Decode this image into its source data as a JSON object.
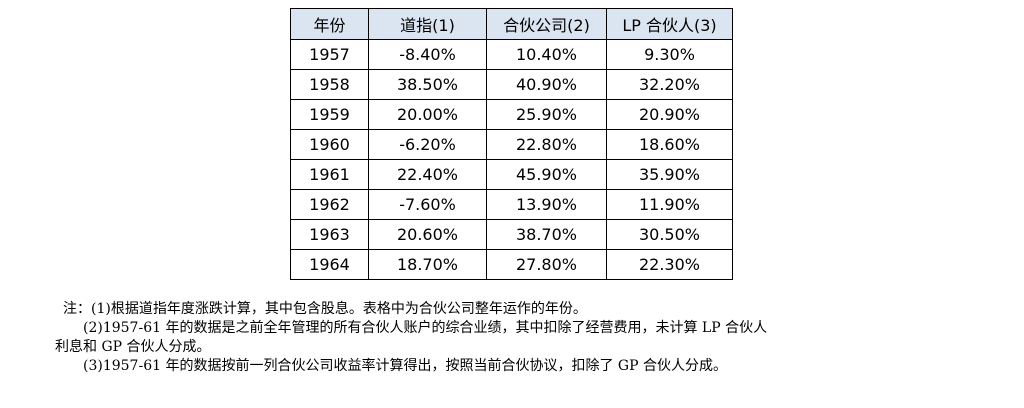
{
  "table": {
    "headers": [
      "年份",
      "道指(1)",
      "合伙公司(2)",
      "LP 合伙人(3)"
    ],
    "rows": [
      [
        "1957",
        "-8.40%",
        "10.40%",
        "9.30%"
      ],
      [
        "1958",
        "38.50%",
        "40.90%",
        "32.20%"
      ],
      [
        "1959",
        "20.00%",
        "25.90%",
        "20.90%"
      ],
      [
        "1960",
        "-6.20%",
        "22.80%",
        "18.60%"
      ],
      [
        "1961",
        "22.40%",
        "45.90%",
        "35.90%"
      ],
      [
        "1962",
        "-7.60%",
        "13.90%",
        "11.90%"
      ],
      [
        "1963",
        "20.60%",
        "38.70%",
        "30.50%"
      ],
      [
        "1964",
        "18.70%",
        "27.80%",
        "22.30%"
      ]
    ]
  },
  "notes": {
    "note1": "注：(1)根据道指年度涨跌计算，其中包含股息。表格中为合伙公司整年运作的年份。",
    "note2_line1": "(2)1957-61 年的数据是之前全年管理的所有合伙人账户的综合业绩，其中扣除了经营费用，未计算 LP 合伙人",
    "note2_line2": "利息和 GP 合伙人分成。",
    "note3": "(3)1957-61 年的数据按前一列合伙公司收益率计算得出，按照当前合伙协议，扣除了 GP 合伙人分成。"
  },
  "colors": {
    "header_background": "#dbe5f1",
    "border": "#000000"
  }
}
